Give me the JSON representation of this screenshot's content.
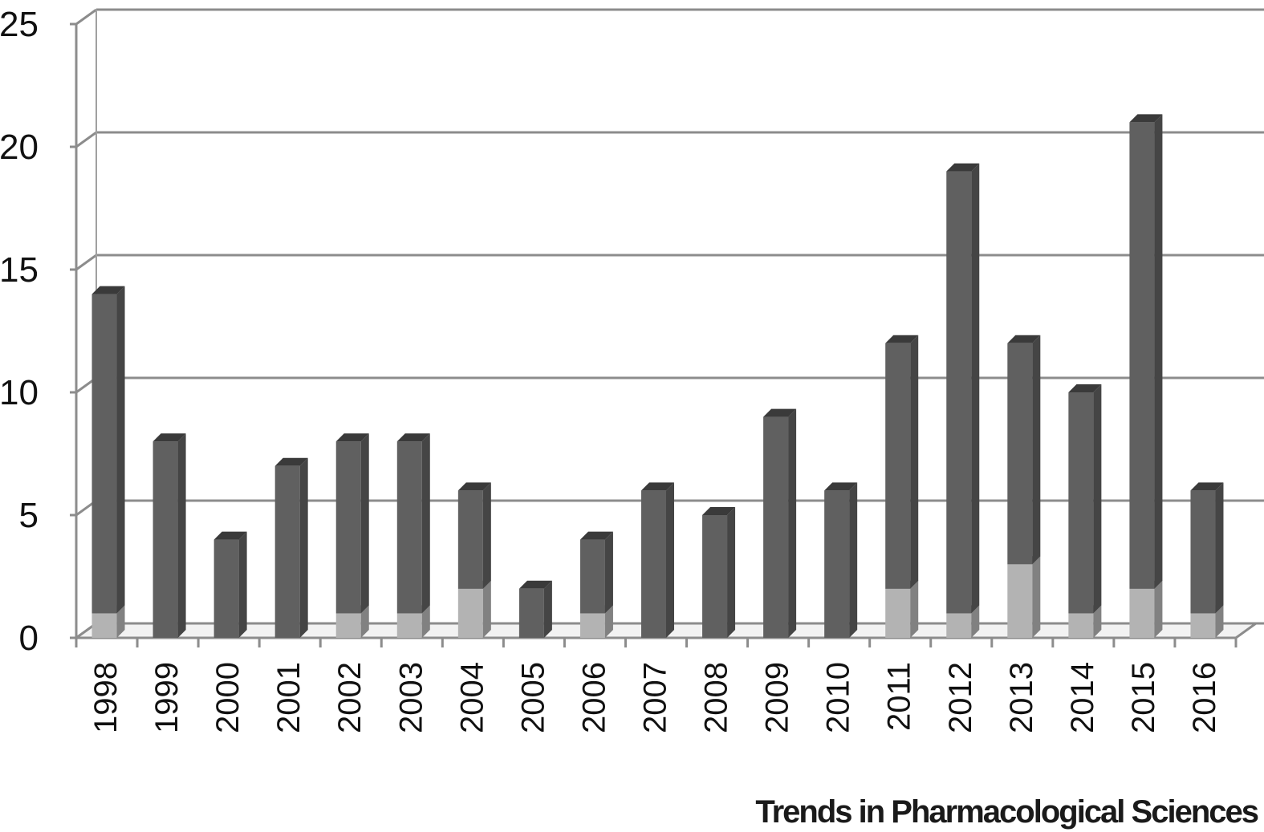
{
  "chart_data": {
    "type": "bar",
    "stacked": true,
    "style": "3d-column",
    "title": "",
    "xlabel": "",
    "ylabel": "",
    "ylim": [
      0,
      25
    ],
    "yticks": [
      0,
      5,
      10,
      15,
      20,
      25
    ],
    "ytick_labels": [
      "0",
      "5",
      "10",
      "15",
      "20",
      "25"
    ],
    "grid": true,
    "legend": "none",
    "categories": [
      "1998",
      "1999",
      "2000",
      "2001",
      "2002",
      "2003",
      "2004",
      "2005",
      "2006",
      "2007",
      "2008",
      "2009",
      "2010",
      "2011",
      "2012",
      "2013",
      "2014",
      "2015",
      "2016"
    ],
    "series": [
      {
        "color": "#b3b3b3",
        "values": [
          1,
          0,
          0,
          0,
          1,
          1,
          2,
          0,
          1,
          0,
          0,
          0,
          0,
          2,
          1,
          3,
          1,
          2,
          1
        ]
      },
      {
        "color": "#606060",
        "values": [
          13,
          8,
          4,
          7,
          7,
          7,
          4,
          2,
          3,
          6,
          5,
          9,
          6,
          10,
          18,
          9,
          9,
          19,
          5
        ]
      }
    ]
  },
  "footer": {
    "text": "Trends in Pharmacological Sciences"
  }
}
